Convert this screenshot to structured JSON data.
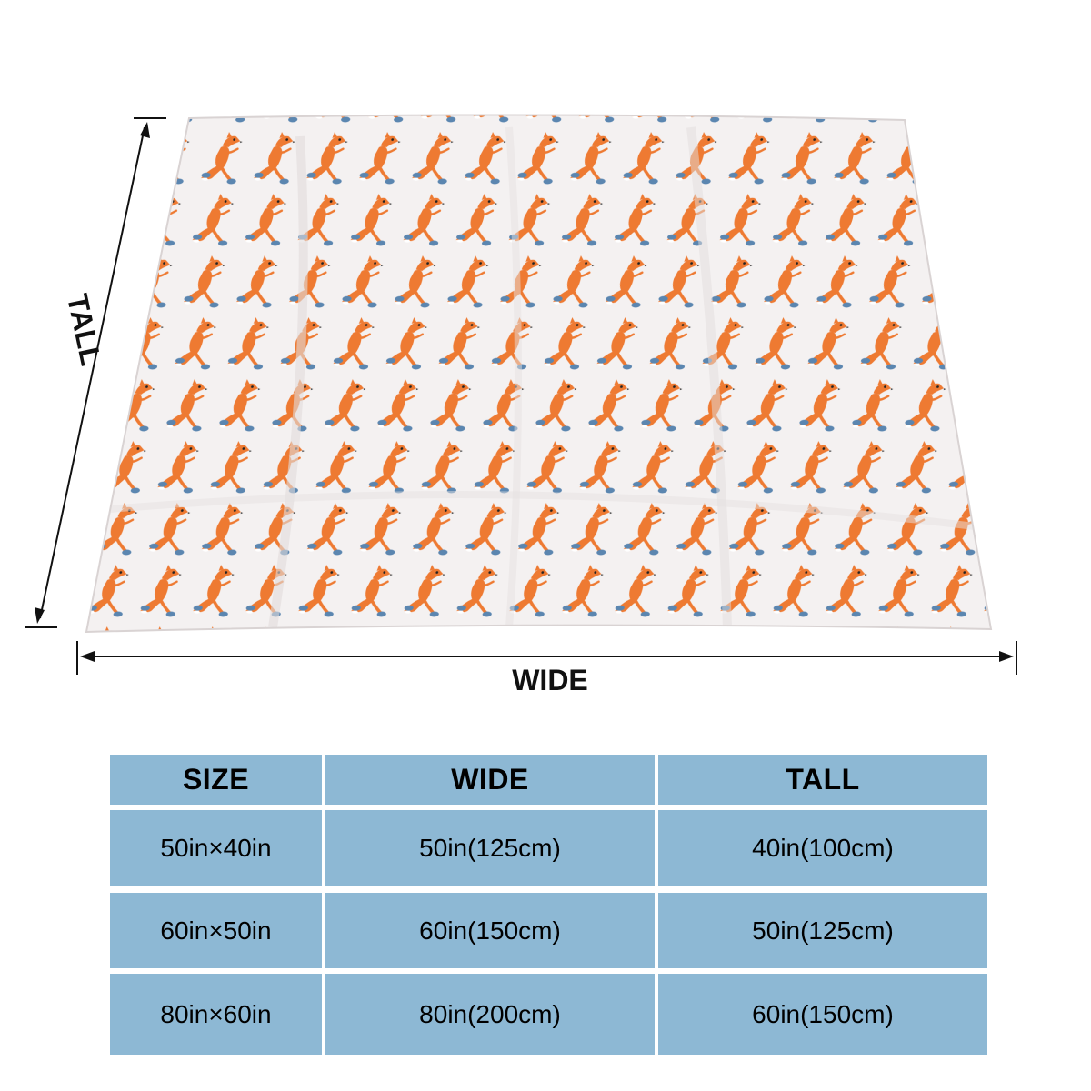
{
  "dimension_labels": {
    "tall": "TALL",
    "wide": "WIDE"
  },
  "blanket": {
    "background_color": "#f4f1f1",
    "pattern": "running-fox",
    "fox_color": "#ee7a32",
    "shoe_color": "#5b86b0"
  },
  "size_table": {
    "cell_color": "#8db8d4",
    "headers": [
      "SIZE",
      "WIDE",
      "TALL"
    ],
    "rows": [
      [
        "50in×40in",
        "50in(125cm)",
        "40in(100cm)"
      ],
      [
        "60in×50in",
        "60in(150cm)",
        "50in(125cm)"
      ],
      [
        "80in×60in",
        "80in(200cm)",
        "60in(150cm)"
      ]
    ]
  }
}
